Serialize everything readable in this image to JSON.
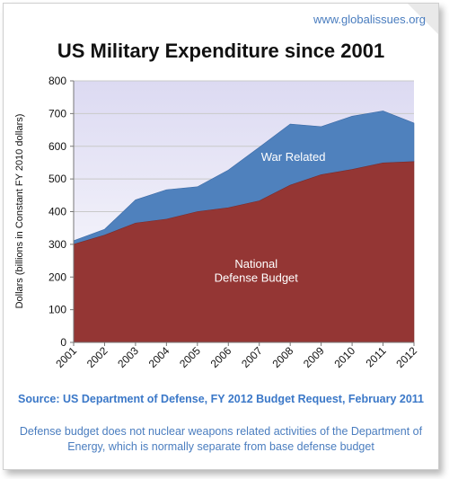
{
  "header": {
    "site": "www.globalissues.org"
  },
  "chart_data": {
    "type": "area",
    "stacked": true,
    "title": "US Military Expenditure since 2001",
    "xlabel": "",
    "ylabel": "Dollars (billions in Constant FY 2010 dollars)",
    "categories": [
      "2001",
      "2002",
      "2003",
      "2004",
      "2005",
      "2006",
      "2007",
      "2008",
      "2009",
      "2010",
      "2011",
      "2012"
    ],
    "ylim": [
      0,
      800
    ],
    "yticks": [
      "0",
      "100",
      "200",
      "300",
      "400",
      "500",
      "600",
      "700",
      "800"
    ],
    "grid": true,
    "series": [
      {
        "name": "National Defense Budget",
        "color": "#943634",
        "values": [
          300,
          328,
          365,
          377,
          400,
          412,
          433,
          481,
          513,
          529,
          549,
          553
        ]
      },
      {
        "name": "War Related",
        "color": "#4f81bd",
        "values": [
          11,
          18,
          71,
          90,
          76,
          115,
          164,
          187,
          147,
          163,
          159,
          118
        ]
      }
    ],
    "annotations": [
      {
        "text": "War Related"
      },
      {
        "text": "National"
      },
      {
        "text": "Defense Budget"
      }
    ]
  },
  "footer": {
    "source": "Source: US Department of Defense, FY 2012 Budget Request, February 2011",
    "note": "Defense budget does not nuclear weapons related activities of the Department of Energy, which is normally separate from base defense budget"
  }
}
